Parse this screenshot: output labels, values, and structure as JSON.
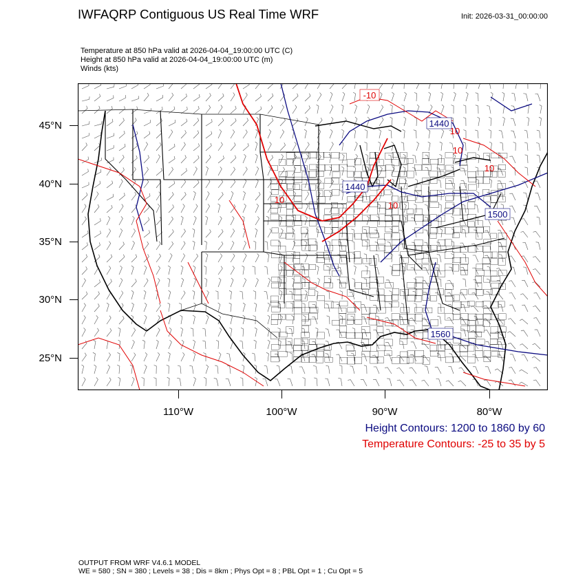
{
  "header": {
    "title": "IWFAQRP Contiguous US Real Time WRF",
    "init": "Init: 2026-03-31_00:00:00"
  },
  "subtitles": {
    "temperature": "Temperature at 850 hPa valid at 2026-04-04_19:00:00 UTC   (C)",
    "height": "Height at 850 hPa valid at 2026-04-04_19:00:00 UTC   (m)",
    "winds": "Winds   (kts)"
  },
  "axes": {
    "lat_labels": [
      "45°N",
      "40°N",
      "35°N",
      "30°N",
      "25°N"
    ],
    "lon_labels": [
      "110°W",
      "100°W",
      "90°W",
      "80°W"
    ]
  },
  "contour_labels": {
    "height": [
      "1440",
      "1440",
      "1500",
      "1560"
    ],
    "temperature": [
      "-10",
      "10",
      "10",
      "10",
      "10",
      "10"
    ]
  },
  "legend": {
    "height": "Height Contours: 1200 to 1860 by 60",
    "temperature": "Temperature Contours: -25 to 35 by 5"
  },
  "footer": {
    "line1": "OUTPUT FROM WRF V4.6.1 MODEL",
    "line2": "WE = 580 ; SN = 380 ; Levels = 38 ; Dis = 8km ; Phys Opt = 8 ; PBL Opt = 1 ; Cu Opt = 5"
  },
  "colors": {
    "height_contour": "#0a0a80",
    "temperature_contour": "#e00000",
    "map_lines": "#000000",
    "background": "#ffffff"
  }
}
